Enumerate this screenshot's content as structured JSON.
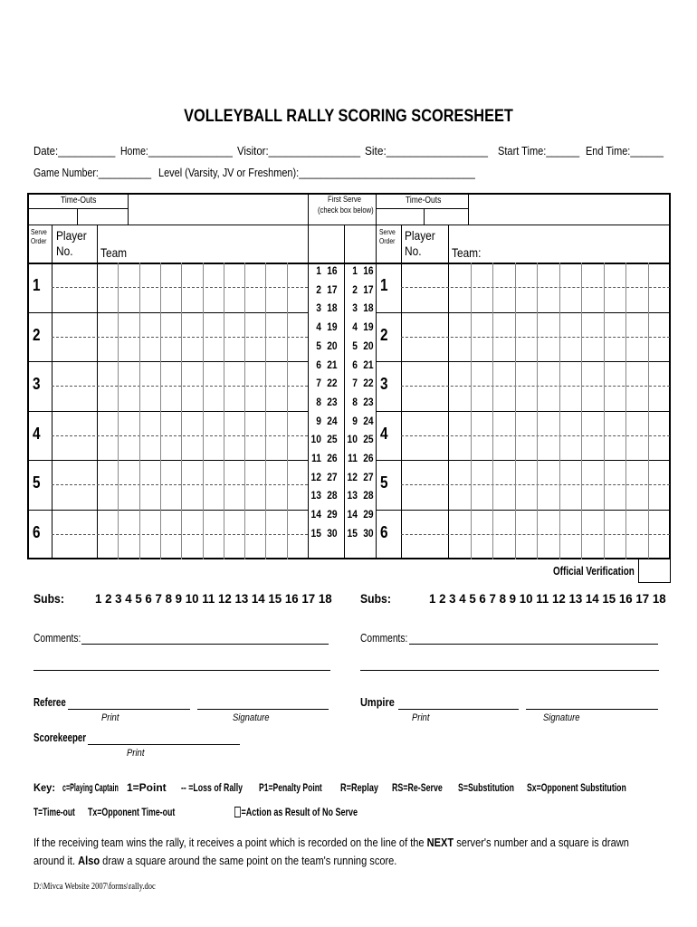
{
  "title": "VOLLEYBALL RALLY SCORING SCORESHEET",
  "header": {
    "date": "Date:__________",
    "home": "Home:________________",
    "visitor": "Visitor:________________",
    "site": "Site:_________________",
    "start": "Start Time:______",
    "end": "End Time:______",
    "game": "Game Number:__________",
    "level": "Level (Varsity, JV or Freshmen):________________________________"
  },
  "table": {
    "timeouts": "Time-Outs",
    "first_serve_1": "First Serve",
    "first_serve_2": "(check box below)",
    "serve_order_1": "Serve",
    "serve_order_2": "Order",
    "player_1": "Player",
    "player_2": "No.",
    "team_left": "Team",
    "team_right": "Team:",
    "rows": [
      "1",
      "2",
      "3",
      "4",
      "5",
      "6"
    ],
    "score_numbers": [
      [
        "1",
        "16"
      ],
      [
        "2",
        "17"
      ],
      [
        "3",
        "18"
      ],
      [
        "4",
        "19"
      ],
      [
        "5",
        "20"
      ],
      [
        "6",
        "21"
      ],
      [
        "7",
        "22"
      ],
      [
        "8",
        "23"
      ],
      [
        "9",
        "24"
      ],
      [
        "10",
        "25"
      ],
      [
        "11",
        "26"
      ],
      [
        "12",
        "27"
      ],
      [
        "13",
        "28"
      ],
      [
        "14",
        "29"
      ],
      [
        "15",
        "30"
      ]
    ]
  },
  "official_verification": "Official Verification",
  "subs": {
    "label": "Subs:",
    "numbers": "1 2 3 4 5 6 7 8 9 10 11 12 13 14 15 16 17 18"
  },
  "comments": "Comments:",
  "referee": "Referee",
  "umpire": "Umpire",
  "scorekeeper": "Scorekeeper",
  "print": "Print",
  "signature": "Signature",
  "key": {
    "label": "Key:",
    "items": [
      "c=Playing Captain",
      "1=Point",
      "-- =Loss of Rally",
      "P1=Penalty Point",
      "R=Replay",
      "RS=Re-Serve",
      "S=Substitution",
      "Sx=Opponent Substitution"
    ],
    "items2": [
      "T=Time-out",
      "Tx=Opponent Time-out",
      "=Action as Result of No Serve"
    ]
  },
  "note": {
    "p1": "If the receiving team wins the rally, it receives a point which is recorded on the line of the ",
    "next": "NEXT",
    "p2": " server's number and a square is drawn around it. ",
    "also": "Also",
    "p3": " draw a square around the same point on the team's running score."
  },
  "footer": "D:\\Mivca Website 2007\\forms\\rally.doc"
}
